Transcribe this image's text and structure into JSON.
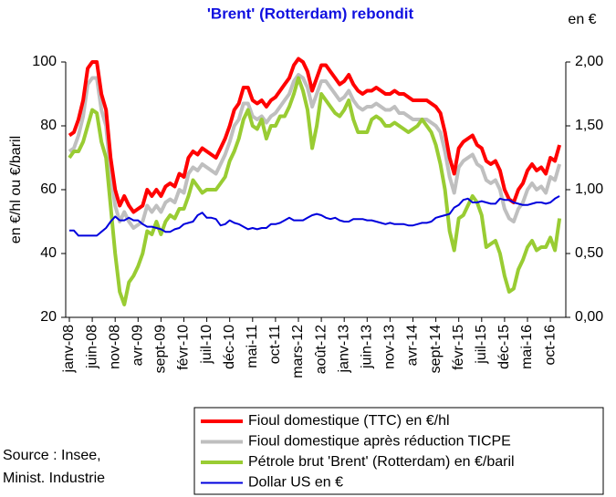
{
  "chart_data": {
    "type": "line",
    "title": "'Brent' (Rotterdam) rebondit",
    "y_label": "en €/hl ou €/baril",
    "y2_label": "en €",
    "source": [
      "Source : Insee,",
      "Minist. Industrie"
    ],
    "categories": [
      "janv-08",
      null,
      null,
      null,
      null,
      "juin-08",
      null,
      null,
      null,
      null,
      "nov-08",
      null,
      null,
      null,
      null,
      "avr-09",
      null,
      null,
      null,
      null,
      "sept-09",
      null,
      null,
      null,
      null,
      "févr-10",
      null,
      null,
      null,
      null,
      "juil-10",
      null,
      null,
      null,
      null,
      "déc-10",
      null,
      null,
      null,
      null,
      "mai-11",
      null,
      null,
      null,
      null,
      "oct-11",
      null,
      null,
      null,
      null,
      "mars-12",
      null,
      null,
      null,
      null,
      "août-12",
      null,
      null,
      null,
      null,
      "janv-13",
      null,
      null,
      null,
      null,
      "juin-13",
      null,
      null,
      null,
      null,
      "nov-13",
      null,
      null,
      null,
      null,
      "avr-14",
      null,
      null,
      null,
      null,
      "sept-14",
      null,
      null,
      null,
      null,
      "févr-15",
      null,
      null,
      null,
      null,
      "juil-15",
      null,
      null,
      null,
      null,
      "déc-15",
      null,
      null,
      null,
      null,
      "mai-16",
      null,
      null,
      null,
      null,
      "oct-16",
      null,
      null
    ],
    "ylim": [
      20,
      100
    ],
    "yticks": [
      20,
      40,
      60,
      80,
      100
    ],
    "y2lim": [
      0,
      2
    ],
    "y2ticks": [
      {
        "value": 0,
        "label": "0,00"
      },
      {
        "value": 0.5,
        "label": "0,50"
      },
      {
        "value": 1,
        "label": "1,00"
      },
      {
        "value": 1.5,
        "label": "1,50"
      },
      {
        "value": 2,
        "label": "2,00"
      }
    ],
    "grid": false,
    "series": [
      {
        "name": "Fioul domestique (TTC) en €/hl",
        "color": "#ff0000",
        "width": 4,
        "values": [
          77,
          78,
          82,
          88,
          98,
          100,
          100,
          90,
          85,
          70,
          60,
          55,
          58,
          55,
          53,
          54,
          55,
          60,
          58,
          60,
          58,
          61,
          62,
          61,
          65,
          64,
          70,
          72,
          71,
          73,
          72,
          71,
          70,
          73,
          76,
          80,
          85,
          87,
          92,
          92,
          88,
          87,
          88,
          86,
          88,
          89,
          91,
          93,
          95,
          99,
          101,
          100,
          97,
          91,
          95,
          99,
          99,
          97,
          95,
          93,
          94,
          96,
          93,
          91,
          90,
          91,
          91,
          92,
          91,
          90,
          90,
          91,
          90,
          90,
          89,
          88,
          88,
          88,
          88,
          87,
          86,
          84,
          78,
          70,
          65,
          73,
          75,
          76,
          77,
          74,
          73,
          69,
          68,
          69,
          66,
          60,
          57,
          56,
          60,
          62,
          66,
          68,
          66,
          67,
          65,
          70,
          69,
          74
        ]
      },
      {
        "name": "Fioul domestique après réduction TICPE",
        "color": "#bfbfbf",
        "width": 4,
        "values": [
          72,
          73,
          77,
          83,
          93,
          95,
          95,
          85,
          80,
          65,
          55,
          50,
          53,
          50,
          48,
          49,
          50,
          55,
          53,
          55,
          53,
          56,
          57,
          56,
          60,
          59,
          65,
          67,
          66,
          68,
          67,
          66,
          65,
          68,
          71,
          75,
          80,
          82,
          87,
          87,
          83,
          82,
          83,
          81,
          83,
          84,
          86,
          88,
          90,
          94,
          96,
          95,
          92,
          86,
          90,
          94,
          94,
          92,
          90,
          88,
          89,
          91,
          88,
          86,
          85,
          86,
          86,
          87,
          86,
          85,
          85,
          86,
          84,
          84,
          83,
          82,
          82,
          82,
          82,
          81,
          80,
          78,
          72,
          64,
          59,
          67,
          69,
          70,
          71,
          68,
          67,
          63,
          62,
          63,
          60,
          54,
          51,
          50,
          54,
          56,
          60,
          62,
          60,
          61,
          59,
          64,
          63,
          68
        ]
      },
      {
        "name": "Pétrole brut 'Brent' (Rotterdam) en €/baril",
        "color": "#99cc33",
        "width": 4,
        "values": [
          70,
          72,
          72,
          75,
          80,
          85,
          84,
          75,
          70,
          55,
          40,
          28,
          24,
          31,
          33,
          36,
          40,
          47,
          46,
          50,
          46,
          50,
          52,
          51,
          54,
          54,
          58,
          63,
          61,
          59,
          60,
          60,
          60,
          62,
          64,
          69,
          72,
          76,
          82,
          85,
          80,
          79,
          82,
          76,
          80,
          80,
          83,
          83,
          86,
          90,
          95,
          91,
          85,
          73,
          80,
          90,
          88,
          86,
          84,
          83,
          85,
          88,
          82,
          78,
          78,
          78,
          82,
          83,
          82,
          80,
          80,
          81,
          80,
          79,
          78,
          79,
          80,
          82,
          80,
          78,
          74,
          68,
          60,
          47,
          41,
          51,
          52,
          55,
          58,
          56,
          52,
          42,
          43,
          44,
          40,
          33,
          28,
          29,
          35,
          38,
          42,
          44,
          41,
          42,
          42,
          45,
          41,
          51
        ]
      },
      {
        "name": "Dollar US en €",
        "color": "#0000dd",
        "width": 2,
        "axis": "y2",
        "values": [
          0.68,
          0.68,
          0.64,
          0.64,
          0.64,
          0.64,
          0.64,
          0.67,
          0.7,
          0.75,
          0.79,
          0.76,
          0.76,
          0.78,
          0.76,
          0.76,
          0.73,
          0.71,
          0.71,
          0.7,
          0.69,
          0.67,
          0.67,
          0.69,
          0.7,
          0.73,
          0.74,
          0.75,
          0.8,
          0.82,
          0.78,
          0.78,
          0.77,
          0.72,
          0.73,
          0.76,
          0.74,
          0.73,
          0.71,
          0.69,
          0.7,
          0.69,
          0.7,
          0.7,
          0.73,
          0.73,
          0.74,
          0.76,
          0.78,
          0.76,
          0.76,
          0.76,
          0.78,
          0.8,
          0.81,
          0.8,
          0.78,
          0.77,
          0.78,
          0.76,
          0.75,
          0.75,
          0.77,
          0.77,
          0.77,
          0.76,
          0.76,
          0.75,
          0.74,
          0.73,
          0.74,
          0.73,
          0.73,
          0.73,
          0.72,
          0.72,
          0.73,
          0.74,
          0.74,
          0.75,
          0.78,
          0.79,
          0.8,
          0.81,
          0.86,
          0.88,
          0.92,
          0.93,
          0.9,
          0.9,
          0.91,
          0.9,
          0.89,
          0.89,
          0.93,
          0.92,
          0.92,
          0.9,
          0.89,
          0.88,
          0.88,
          0.89,
          0.9,
          0.9,
          0.89,
          0.9,
          0.93,
          0.95
        ]
      }
    ]
  }
}
